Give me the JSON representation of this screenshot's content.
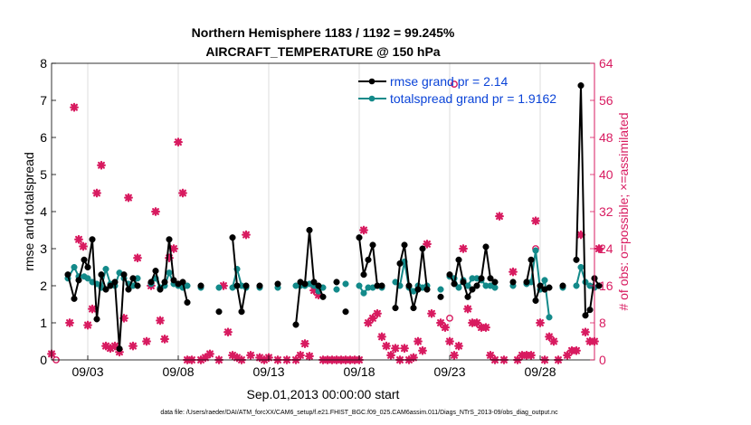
{
  "colors": {
    "rmse": "#000000",
    "spread": "#138a8a",
    "obs": "#d81b60",
    "legend_text": "#0b44d8",
    "grid": "#dddddd"
  },
  "chart_data": {
    "type": "line",
    "title_line1": "Northern Hemisphere 1183 / 1192 = 99.245%",
    "title_line2": "AIRCRAFT_TEMPERATURE @ 150 hPa",
    "xlabel": "Sep.01,2013 00:00:00 start",
    "ylabel": "rmse and totalspread",
    "y2label": "# of obs: o=possible; ×=assimilated",
    "xlim": [
      1.0,
      31.0
    ],
    "ylim": [
      0,
      8
    ],
    "y2lim": [
      0,
      64
    ],
    "x_ticks": [
      {
        "x": 3.0,
        "label": "09/03"
      },
      {
        "x": 8.0,
        "label": "09/08"
      },
      {
        "x": 13.0,
        "label": "09/13"
      },
      {
        "x": 18.0,
        "label": "09/18"
      },
      {
        "x": 23.0,
        "label": "09/23"
      },
      {
        "x": 28.0,
        "label": "09/28"
      }
    ],
    "y_ticks": [
      "0",
      "1",
      "2",
      "3",
      "4",
      "5",
      "6",
      "7",
      "8"
    ],
    "y2_ticks": [
      "0",
      "8",
      "16",
      "24",
      "32",
      "40",
      "48",
      "56",
      "64"
    ],
    "legend": {
      "location": "top-right",
      "entries": [
        "rmse grand pr = 2.14",
        "totalspread grand pr = 1.9162"
      ]
    },
    "footer": "data file: /Users/raeder/DAI/ATM_forcXX/CAM6_setup/f.e21.FHIST_BGC.f09_025.CAM6assim.011/Diags_NTrS_2013-09/obs_diag_output.nc",
    "series": [
      {
        "name": "rmse",
        "segments": [
          [
            [
              1.9,
              2.3
            ],
            [
              2.25,
              1.65
            ],
            [
              2.5,
              2.15
            ],
            [
              2.8,
              2.7
            ],
            [
              3.0,
              2.5
            ],
            [
              3.25,
              3.25
            ],
            [
              3.5,
              1.1
            ],
            [
              3.75,
              2.3
            ],
            [
              4.0,
              1.9
            ],
            [
              4.25,
              2.0
            ],
            [
              4.5,
              2.1
            ],
            [
              4.75,
              0.3
            ],
            [
              5.0,
              2.3
            ],
            [
              5.25,
              1.9
            ],
            [
              5.5,
              2.2
            ],
            [
              5.75,
              2.0
            ]
          ],
          [
            [
              6.5,
              2.1
            ],
            [
              6.75,
              2.4
            ],
            [
              7.0,
              1.9
            ],
            [
              7.25,
              2.1
            ],
            [
              7.5,
              3.25
            ],
            [
              7.75,
              2.15
            ],
            [
              8.0,
              2.05
            ],
            [
              8.25,
              2.1
            ],
            [
              8.5,
              1.55
            ]
          ],
          [
            [
              9.25,
              2.0
            ]
          ],
          [
            [
              10.25,
              1.3
            ]
          ],
          [
            [
              11.0,
              3.3
            ],
            [
              11.25,
              2.0
            ],
            [
              11.5,
              1.3
            ],
            [
              11.75,
              2.0
            ]
          ],
          [
            [
              12.5,
              2.0
            ]
          ],
          [
            [
              13.5,
              2.05
            ]
          ],
          [
            [
              14.5,
              0.95
            ],
            [
              14.75,
              2.1
            ],
            [
              15.0,
              2.05
            ],
            [
              15.25,
              3.5
            ],
            [
              15.5,
              2.1
            ],
            [
              15.75,
              2.0
            ],
            [
              16.0,
              1.7
            ]
          ],
          [
            [
              16.75,
              2.1
            ]
          ],
          [
            [
              17.25,
              1.3
            ]
          ],
          [
            [
              18.0,
              3.3
            ],
            [
              18.25,
              2.3
            ],
            [
              18.5,
              2.7
            ],
            [
              18.75,
              3.1
            ],
            [
              19.0,
              2.0
            ],
            [
              19.25,
              2.0
            ]
          ],
          [
            [
              20.0,
              1.4
            ],
            [
              20.25,
              2.6
            ],
            [
              20.5,
              3.1
            ],
            [
              20.75,
              2.0
            ],
            [
              21.0,
              1.4
            ],
            [
              21.25,
              1.9
            ],
            [
              21.5,
              3.0
            ],
            [
              21.75,
              1.9
            ]
          ],
          [
            [
              22.5,
              1.7
            ]
          ],
          [
            [
              23.0,
              2.3
            ],
            [
              23.25,
              2.05
            ],
            [
              23.5,
              2.7
            ],
            [
              23.75,
              2.1
            ],
            [
              24.0,
              1.7
            ],
            [
              24.25,
              1.9
            ],
            [
              24.5,
              2.0
            ],
            [
              24.75,
              2.2
            ],
            [
              25.0,
              3.05
            ],
            [
              25.25,
              2.2
            ],
            [
              25.5,
              2.1
            ]
          ],
          [
            [
              26.5,
              2.1
            ]
          ],
          [
            [
              27.25,
              2.1
            ],
            [
              27.5,
              2.7
            ],
            [
              27.75,
              1.6
            ],
            [
              28.0,
              2.0
            ],
            [
              28.25,
              1.9
            ],
            [
              28.5,
              1.95
            ]
          ],
          [
            [
              29.25,
              2.0
            ]
          ],
          [
            [
              30.0,
              2.7
            ],
            [
              30.25,
              7.4
            ],
            [
              30.5,
              1.2
            ],
            [
              30.75,
              1.35
            ],
            [
              31.0,
              2.2
            ],
            [
              31.25,
              2.0
            ]
          ]
        ]
      },
      {
        "name": "totalspread",
        "segments": [
          [
            [
              1.9,
              2.2
            ],
            [
              2.25,
              2.5
            ],
            [
              2.5,
              2.25
            ],
            [
              2.8,
              2.25
            ],
            [
              3.0,
              2.2
            ],
            [
              3.25,
              2.1
            ],
            [
              3.5,
              2.05
            ],
            [
              3.75,
              1.95
            ],
            [
              4.0,
              2.45
            ],
            [
              4.25,
              2.05
            ],
            [
              4.5,
              2.0
            ],
            [
              4.75,
              2.35
            ],
            [
              5.0,
              2.2
            ],
            [
              5.25,
              2.05
            ],
            [
              5.5,
              2.0
            ],
            [
              5.75,
              2.2
            ]
          ],
          [
            [
              6.5,
              2.05
            ],
            [
              6.75,
              2.2
            ],
            [
              7.0,
              1.95
            ],
            [
              7.25,
              2.0
            ],
            [
              7.5,
              2.35
            ],
            [
              7.75,
              2.05
            ],
            [
              8.0,
              2.0
            ],
            [
              8.25,
              1.95
            ],
            [
              8.5,
              2.0
            ]
          ],
          [
            [
              9.25,
              1.95
            ]
          ],
          [
            [
              10.25,
              1.95
            ]
          ],
          [
            [
              11.0,
              1.95
            ],
            [
              11.25,
              2.45
            ],
            [
              11.5,
              2.0
            ],
            [
              11.75,
              1.95
            ]
          ],
          [
            [
              12.5,
              1.95
            ]
          ],
          [
            [
              13.5,
              1.95
            ]
          ],
          [
            [
              14.5,
              2.0
            ],
            [
              14.75,
              2.0
            ],
            [
              15.0,
              2.0
            ],
            [
              15.25,
              2.05
            ],
            [
              15.5,
              2.0
            ],
            [
              15.75,
              1.85
            ],
            [
              16.0,
              1.95
            ]
          ],
          [
            [
              16.75,
              1.9
            ]
          ],
          [
            [
              17.25,
              2.05
            ]
          ],
          [
            [
              18.0,
              2.0
            ],
            [
              18.25,
              1.8
            ],
            [
              18.5,
              1.95
            ],
            [
              18.75,
              1.95
            ],
            [
              19.0,
              2.0
            ],
            [
              19.25,
              1.95
            ]
          ],
          [
            [
              20.0,
              2.1
            ],
            [
              20.25,
              2.0
            ],
            [
              20.5,
              2.65
            ],
            [
              20.75,
              1.95
            ],
            [
              21.0,
              1.85
            ],
            [
              21.25,
              2.0
            ],
            [
              21.5,
              1.95
            ],
            [
              21.75,
              2.0
            ]
          ],
          [
            [
              22.5,
              1.9
            ]
          ],
          [
            [
              23.0,
              2.25
            ],
            [
              23.25,
              2.2
            ],
            [
              23.5,
              1.95
            ],
            [
              23.75,
              2.15
            ],
            [
              24.0,
              2.0
            ],
            [
              24.25,
              2.2
            ],
            [
              24.5,
              2.2
            ],
            [
              24.75,
              2.15
            ],
            [
              25.0,
              2.0
            ],
            [
              25.25,
              2.0
            ],
            [
              25.5,
              1.95
            ]
          ],
          [
            [
              26.5,
              2.0
            ]
          ],
          [
            [
              27.25,
              2.05
            ],
            [
              27.5,
              2.1
            ],
            [
              27.75,
              2.95
            ],
            [
              28.0,
              1.9
            ],
            [
              28.25,
              2.15
            ],
            [
              28.5,
              1.15
            ]
          ],
          [
            [
              29.25,
              1.95
            ]
          ],
          [
            [
              30.0,
              2.0
            ],
            [
              30.25,
              2.5
            ],
            [
              30.5,
              2.1
            ],
            [
              30.75,
              2.0
            ],
            [
              31.0,
              1.95
            ],
            [
              31.25,
              2.0
            ]
          ]
        ]
      }
    ],
    "obs_assimilated": [
      [
        1.0,
        1.3
      ],
      [
        2.0,
        8
      ],
      [
        2.25,
        54.5
      ],
      [
        2.5,
        26
      ],
      [
        2.75,
        24.5
      ],
      [
        3.0,
        7.5
      ],
      [
        3.25,
        11
      ],
      [
        3.5,
        36
      ],
      [
        3.75,
        42
      ],
      [
        4.0,
        3
      ],
      [
        4.25,
        2.5
      ],
      [
        4.5,
        3
      ],
      [
        4.75,
        1.7
      ],
      [
        5.0,
        9
      ],
      [
        5.25,
        35
      ],
      [
        5.5,
        3
      ],
      [
        5.75,
        22
      ],
      [
        6.25,
        4
      ],
      [
        6.5,
        16
      ],
      [
        6.75,
        32
      ],
      [
        7.0,
        8.5
      ],
      [
        7.25,
        4.5
      ],
      [
        7.5,
        22
      ],
      [
        7.75,
        24
      ],
      [
        8.0,
        47
      ],
      [
        8.25,
        36
      ],
      [
        8.5,
        0
      ],
      [
        8.75,
        0
      ],
      [
        9.25,
        0
      ],
      [
        9.5,
        0.5
      ],
      [
        9.75,
        1.3
      ],
      [
        10.25,
        0
      ],
      [
        10.5,
        16
      ],
      [
        10.75,
        6
      ],
      [
        11.0,
        1
      ],
      [
        11.25,
        0.5
      ],
      [
        11.5,
        0
      ],
      [
        11.75,
        27
      ],
      [
        12.0,
        1
      ],
      [
        12.5,
        0.5
      ],
      [
        12.75,
        0
      ],
      [
        13.0,
        0.5
      ],
      [
        13.5,
        0
      ],
      [
        14.0,
        0
      ],
      [
        14.5,
        0
      ],
      [
        14.75,
        1
      ],
      [
        15.0,
        3.5
      ],
      [
        15.25,
        0.8
      ],
      [
        15.5,
        15
      ],
      [
        15.75,
        14
      ],
      [
        16.0,
        0
      ],
      [
        16.25,
        0
      ],
      [
        16.5,
        0
      ],
      [
        16.75,
        0
      ],
      [
        17.0,
        0
      ],
      [
        17.25,
        0
      ],
      [
        17.5,
        0
      ],
      [
        17.75,
        0
      ],
      [
        18.0,
        0
      ],
      [
        18.25,
        28
      ],
      [
        18.5,
        8
      ],
      [
        18.75,
        9
      ],
      [
        19.0,
        10
      ],
      [
        19.25,
        5
      ],
      [
        19.5,
        3
      ],
      [
        19.75,
        1
      ],
      [
        20.0,
        2.5
      ],
      [
        20.25,
        0
      ],
      [
        20.5,
        2.5
      ],
      [
        20.75,
        0
      ],
      [
        21.0,
        0.5
      ],
      [
        21.25,
        4
      ],
      [
        21.5,
        2
      ],
      [
        21.75,
        25
      ],
      [
        22.0,
        10
      ],
      [
        22.5,
        8
      ],
      [
        22.75,
        7
      ],
      [
        23.0,
        4
      ],
      [
        23.25,
        1
      ],
      [
        23.5,
        3
      ],
      [
        23.75,
        24
      ],
      [
        24.0,
        11
      ],
      [
        24.25,
        8
      ],
      [
        24.5,
        8
      ],
      [
        24.75,
        7
      ],
      [
        25.0,
        7
      ],
      [
        25.25,
        1
      ],
      [
        25.5,
        0
      ],
      [
        25.75,
        31
      ],
      [
        26.0,
        0
      ],
      [
        26.5,
        19
      ],
      [
        26.75,
        0
      ],
      [
        27.0,
        1
      ],
      [
        27.25,
        1
      ],
      [
        27.5,
        1
      ],
      [
        27.75,
        30
      ],
      [
        28.0,
        8
      ],
      [
        28.25,
        0
      ],
      [
        28.5,
        5
      ],
      [
        28.75,
        4
      ],
      [
        29.0,
        0
      ],
      [
        29.5,
        1
      ],
      [
        29.75,
        2
      ],
      [
        30.0,
        2
      ],
      [
        30.25,
        27
      ],
      [
        30.5,
        6
      ],
      [
        30.75,
        4
      ],
      [
        31.0,
        4
      ],
      [
        31.25,
        24
      ]
    ],
    "obs_possible": [
      [
        1.25,
        0
      ],
      [
        23.25,
        59.5
      ],
      [
        23.0,
        9
      ],
      [
        27.75,
        24
      ]
    ]
  }
}
